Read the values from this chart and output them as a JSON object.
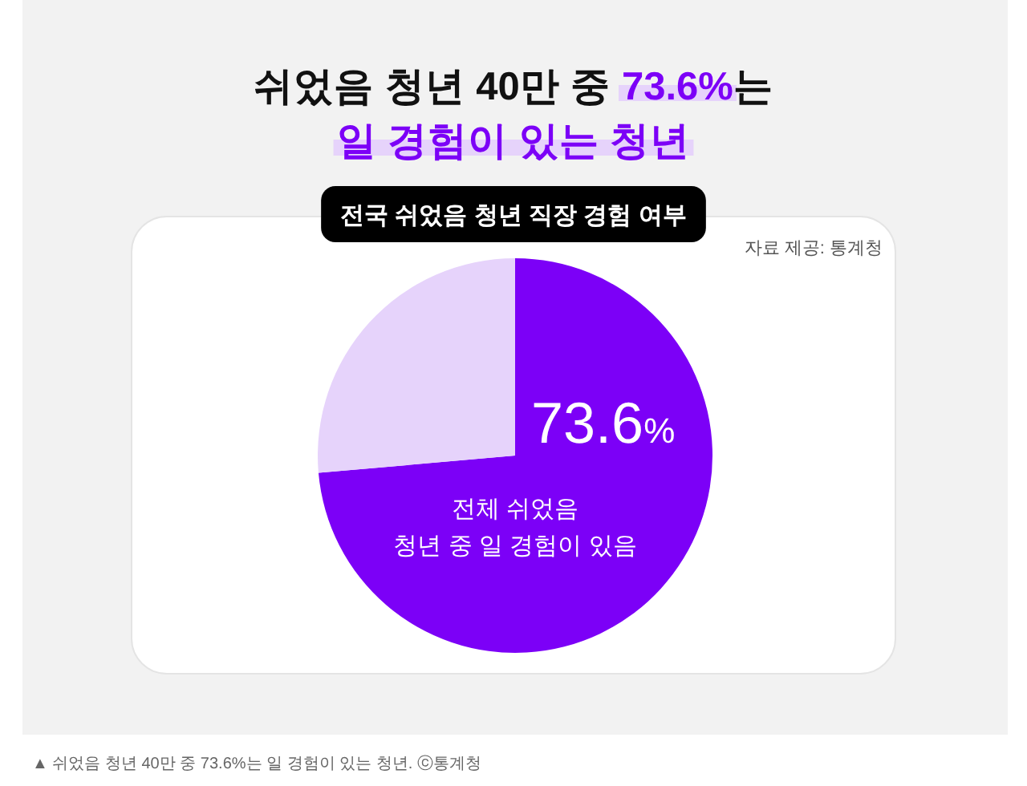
{
  "chart_data": {
    "type": "pie",
    "title": "쉬었음 청년 40만 중 73.6%는\n일 경험이 있는 청년",
    "subtitle": "전국 쉬었음 청년 직장 경험 여부",
    "categories": [
      "전체 쉬었음\n청년 중 일 경험이 있음",
      null
    ],
    "values": [
      73.6,
      26.4
    ],
    "colors": [
      "#7c00f7",
      "#e6d3fb"
    ],
    "value_labels": [
      "73.6%",
      null
    ],
    "annotations": [
      "자료 제공: 통계청",
      "▲ 쉬었음 청년 40만 중 73.6%는 일 경험이 있는 청년. ⓒ통계청"
    ]
  }
}
